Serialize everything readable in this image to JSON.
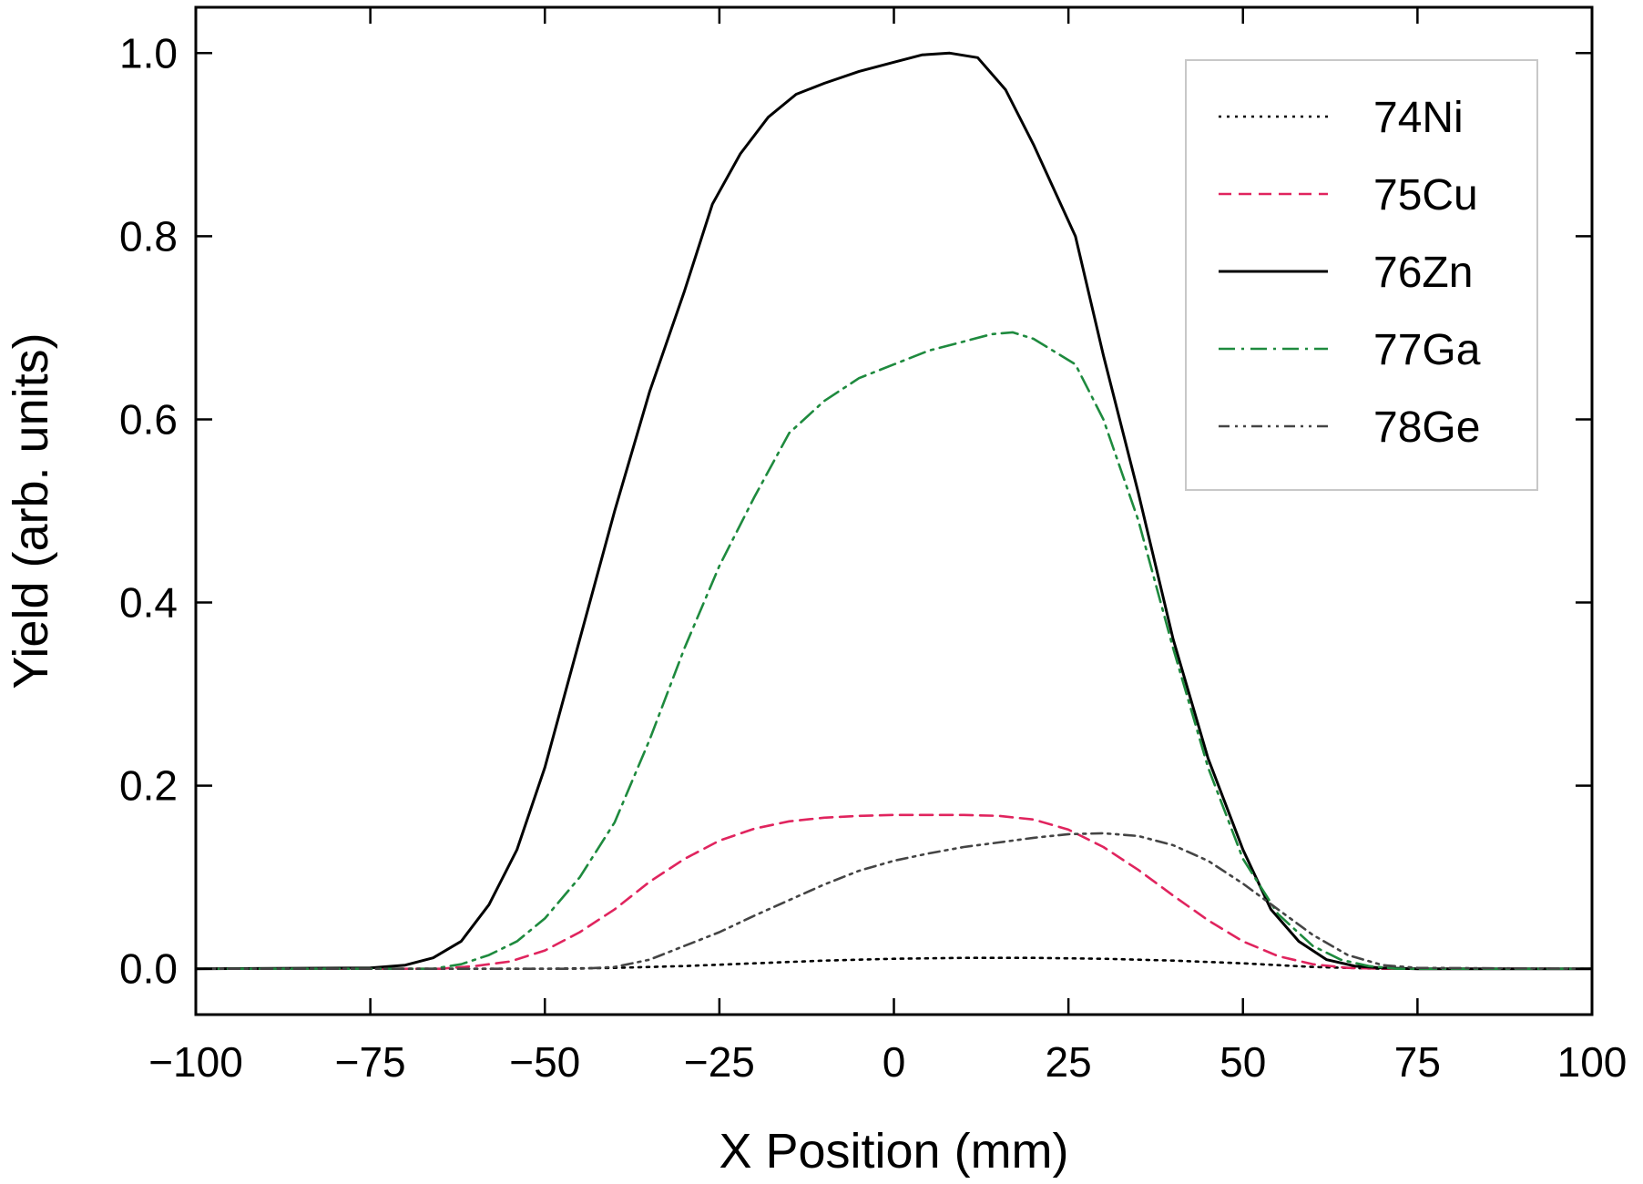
{
  "chart_data": {
    "type": "line",
    "xlabel": "X Position (mm)",
    "ylabel": "Yield (arb. units)",
    "xlim": [
      -100,
      100
    ],
    "ylim": [
      -0.05,
      1.05
    ],
    "xticks": [
      -100,
      -75,
      -50,
      -25,
      0,
      25,
      50,
      75,
      100
    ],
    "xtick_labels": [
      "−100",
      "−75",
      "−50",
      "−25",
      "0",
      "25",
      "50",
      "75",
      "100"
    ],
    "yticks": [
      0.0,
      0.2,
      0.4,
      0.6,
      0.8,
      1.0
    ],
    "ytick_labels": [
      "0.0",
      "0.2",
      "0.4",
      "0.6",
      "0.8",
      "1.0"
    ],
    "grid": false,
    "legend_position": "top-right",
    "series": [
      {
        "name": "74Ni",
        "color": "#000000",
        "dash": "dotted",
        "x": [
          -100,
          -50,
          -40,
          -30,
          -20,
          -10,
          0,
          10,
          20,
          30,
          40,
          50,
          60,
          70,
          100
        ],
        "y": [
          0,
          0,
          0.001,
          0.003,
          0.006,
          0.009,
          0.011,
          0.012,
          0.012,
          0.011,
          0.009,
          0.006,
          0.002,
          0,
          0
        ]
      },
      {
        "name": "75Cu",
        "color": "#e0245e",
        "dash": "dashed",
        "x": [
          -100,
          -65,
          -60,
          -55,
          -50,
          -45,
          -40,
          -35,
          -30,
          -25,
          -20,
          -15,
          -10,
          -5,
          0,
          5,
          10,
          15,
          20,
          25,
          30,
          35,
          40,
          45,
          50,
          55,
          60,
          65,
          70,
          100
        ],
        "y": [
          0,
          0,
          0.003,
          0.008,
          0.02,
          0.04,
          0.065,
          0.095,
          0.12,
          0.14,
          0.153,
          0.161,
          0.165,
          0.167,
          0.168,
          0.168,
          0.168,
          0.167,
          0.163,
          0.152,
          0.133,
          0.108,
          0.08,
          0.053,
          0.03,
          0.014,
          0.005,
          0.001,
          0,
          0
        ]
      },
      {
        "name": "76Zn",
        "color": "#000000",
        "dash": "solid",
        "x": [
          -100,
          -75,
          -70,
          -66,
          -62,
          -58,
          -54,
          -50,
          -45,
          -40,
          -35,
          -30,
          -26,
          -22,
          -18,
          -14,
          -10,
          -5,
          0,
          4,
          8,
          12,
          16,
          20,
          26,
          30,
          35,
          40,
          45,
          50,
          54,
          58,
          62,
          66,
          70,
          75,
          100
        ],
        "y": [
          0,
          0.001,
          0.004,
          0.012,
          0.03,
          0.07,
          0.13,
          0.22,
          0.36,
          0.5,
          0.63,
          0.74,
          0.835,
          0.89,
          0.93,
          0.955,
          0.967,
          0.98,
          0.99,
          0.998,
          1.0,
          0.995,
          0.96,
          0.9,
          0.8,
          0.67,
          0.52,
          0.36,
          0.23,
          0.13,
          0.065,
          0.03,
          0.01,
          0.003,
          0.001,
          0,
          0
        ]
      },
      {
        "name": "77Ga",
        "color": "#1e8a3e",
        "dash": "dashdot",
        "x": [
          -100,
          -66,
          -62,
          -58,
          -54,
          -50,
          -45,
          -40,
          -35,
          -30,
          -25,
          -20,
          -15,
          -10,
          -5,
          0,
          5,
          10,
          14,
          17,
          20,
          26,
          30,
          35,
          40,
          45,
          50,
          55,
          60,
          64,
          68,
          72,
          100
        ],
        "y": [
          0,
          0,
          0.005,
          0.015,
          0.03,
          0.055,
          0.1,
          0.16,
          0.25,
          0.35,
          0.44,
          0.515,
          0.585,
          0.62,
          0.645,
          0.66,
          0.675,
          0.685,
          0.693,
          0.695,
          0.688,
          0.66,
          0.6,
          0.49,
          0.35,
          0.22,
          0.12,
          0.06,
          0.025,
          0.01,
          0.003,
          0,
          0
        ]
      },
      {
        "name": "78Ge",
        "color": "#444444",
        "dash": "dashdotdot",
        "x": [
          -100,
          -45,
          -40,
          -35,
          -30,
          -25,
          -20,
          -15,
          -10,
          -5,
          0,
          5,
          10,
          15,
          20,
          25,
          30,
          35,
          40,
          45,
          50,
          55,
          60,
          65,
          70,
          75,
          100
        ],
        "y": [
          0,
          0,
          0.002,
          0.01,
          0.025,
          0.04,
          0.058,
          0.075,
          0.092,
          0.107,
          0.118,
          0.126,
          0.133,
          0.138,
          0.143,
          0.147,
          0.148,
          0.145,
          0.135,
          0.118,
          0.093,
          0.065,
          0.037,
          0.015,
          0.004,
          0.001,
          0
        ]
      }
    ]
  }
}
